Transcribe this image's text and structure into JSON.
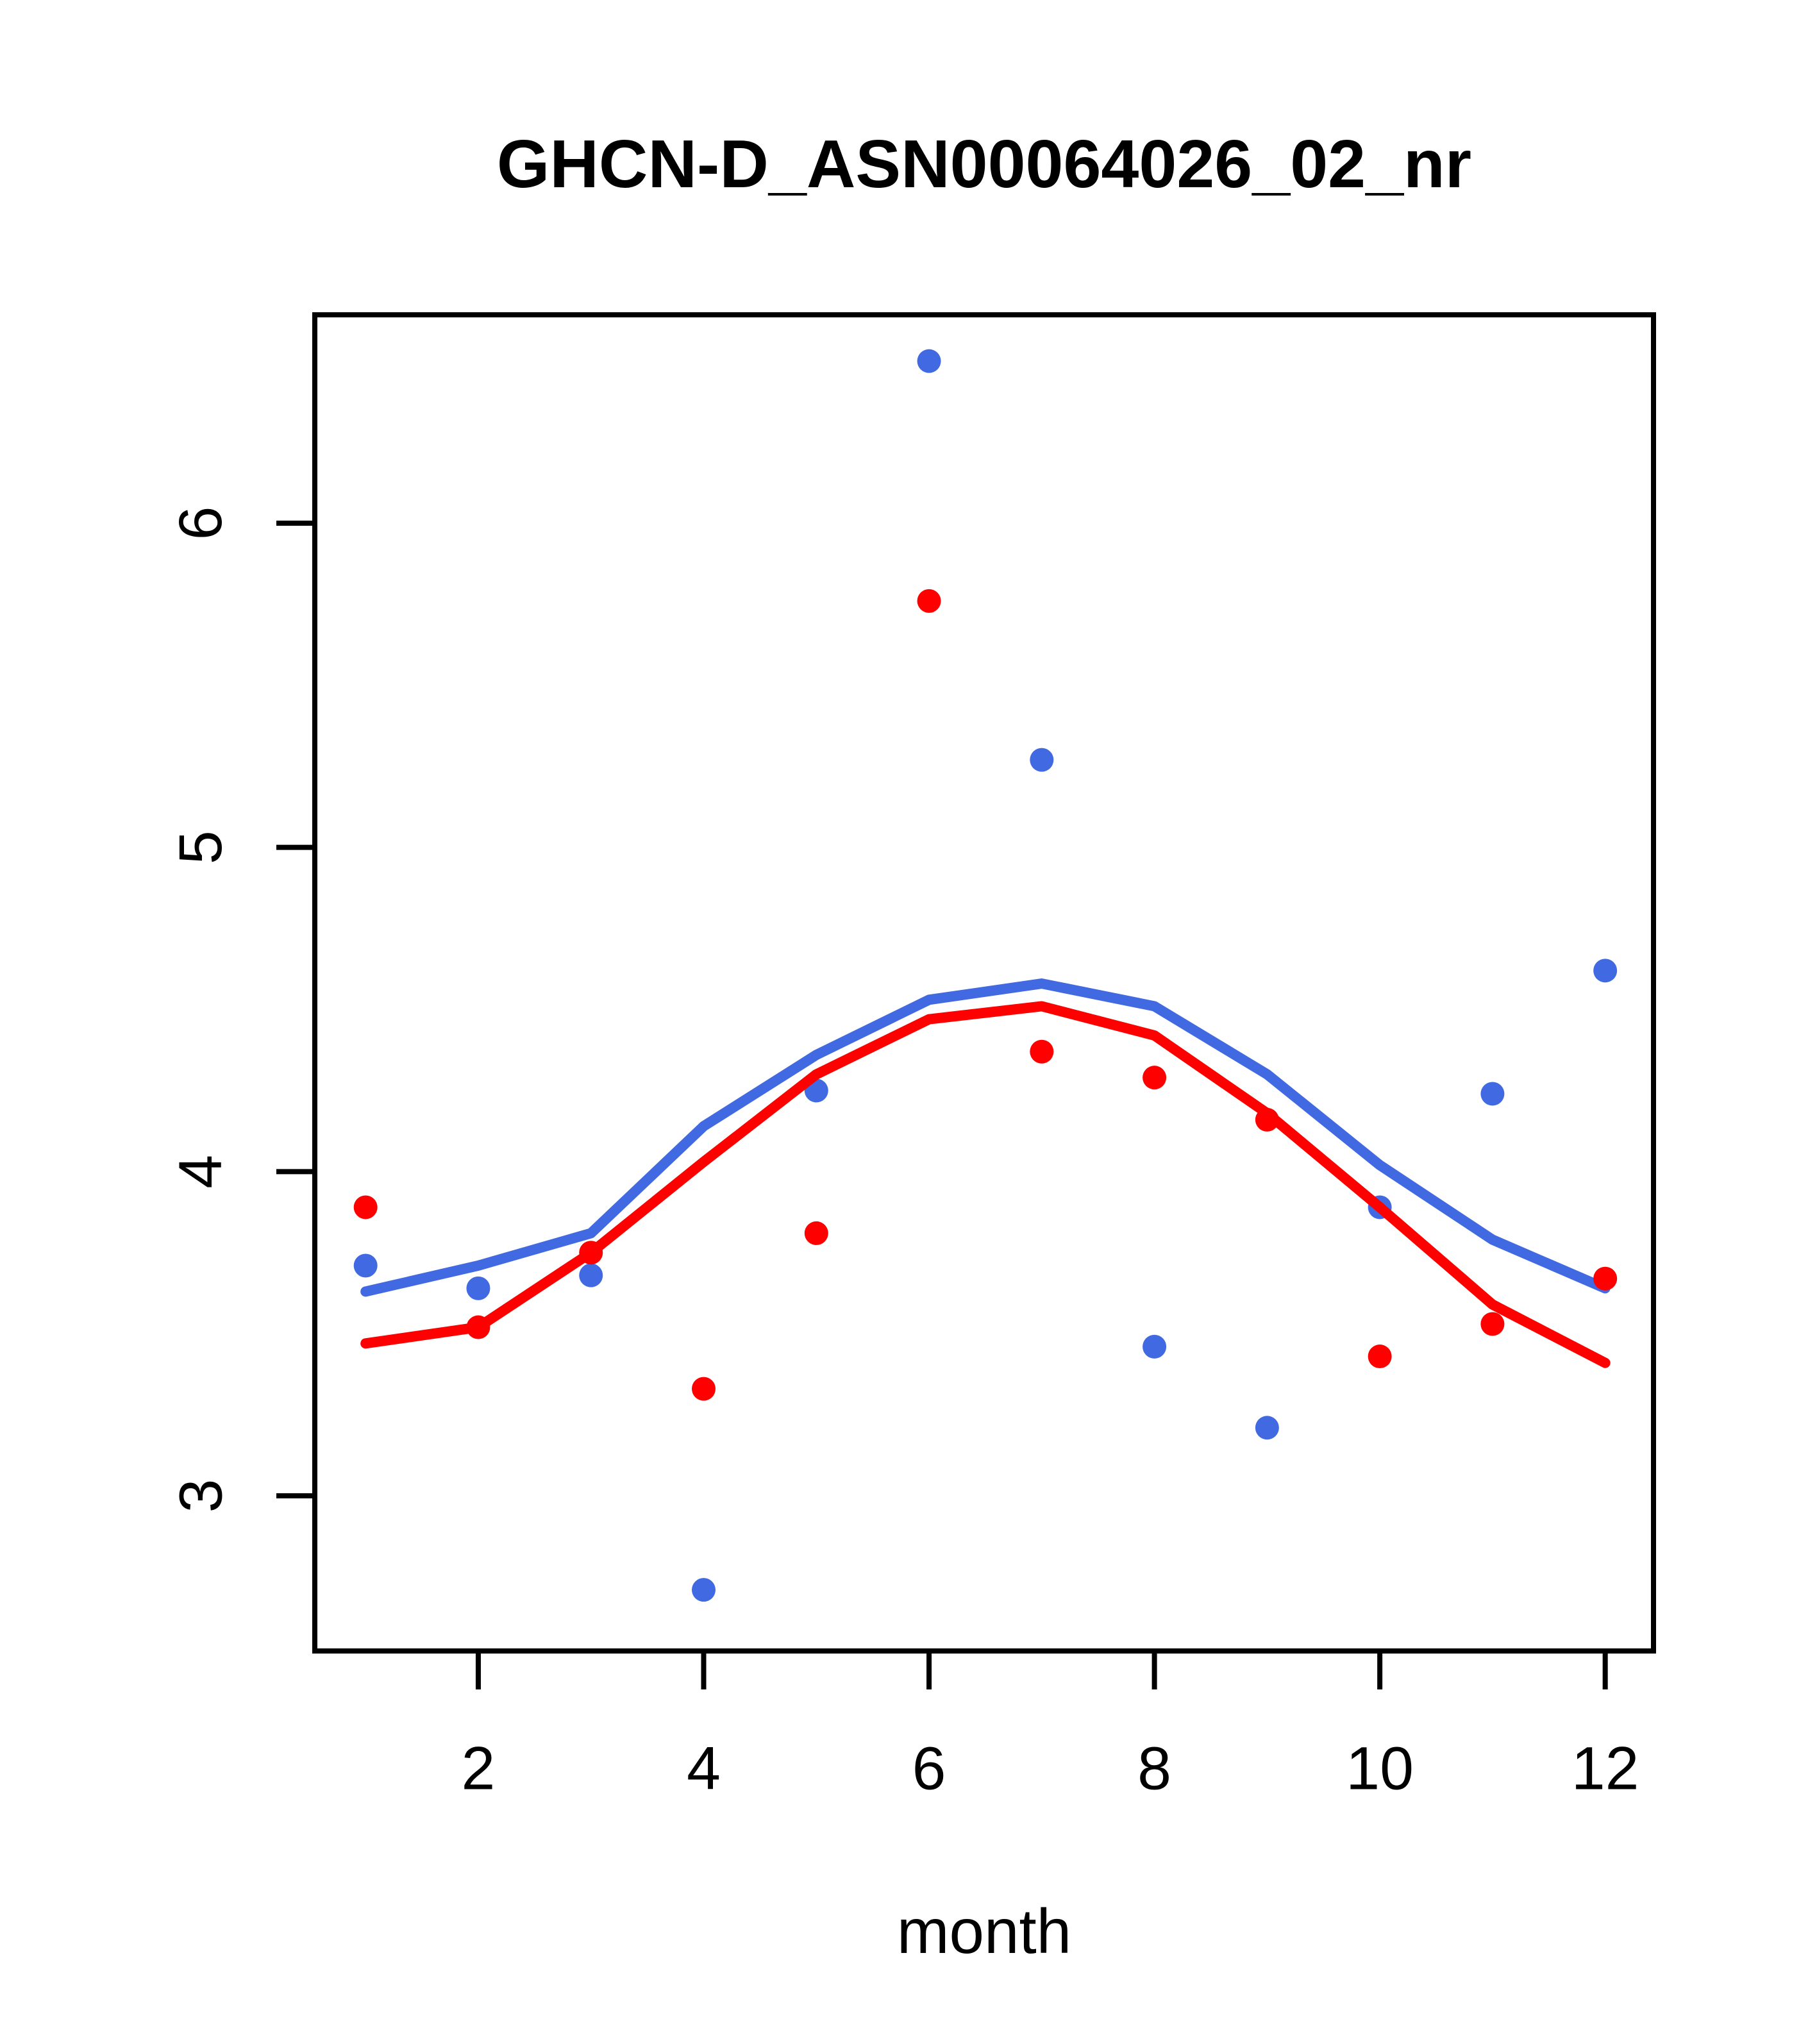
{
  "chart_data": {
    "type": "scatter",
    "title": "GHCN-D_ASN00064026_02_nr",
    "xlabel": "month",
    "ylabel": "",
    "x": [
      1,
      2,
      3,
      4,
      5,
      6,
      7,
      8,
      9,
      10,
      11,
      12
    ],
    "xticks": [
      2,
      4,
      6,
      8,
      10,
      12
    ],
    "yticks": [
      3,
      4,
      5,
      6
    ],
    "xlim": [
      0.56,
      12.44
    ],
    "ylim": [
      2.55,
      6.66
    ],
    "grid": false,
    "legend": "none",
    "colors": {
      "blue": "#4169E1",
      "red": "#FF0000",
      "axis": "#000000",
      "background": "#FFFFFF"
    },
    "series": [
      {
        "name": "blue-points",
        "kind": "points",
        "color": "#4169E1",
        "values": [
          3.71,
          3.64,
          3.68,
          2.71,
          4.25,
          6.5,
          5.27,
          3.46,
          3.21,
          3.89,
          4.24,
          4.62
        ]
      },
      {
        "name": "blue-line",
        "kind": "line",
        "color": "#4169E1",
        "values": [
          3.63,
          3.71,
          3.81,
          4.14,
          4.36,
          4.53,
          4.58,
          4.51,
          4.3,
          4.02,
          3.79,
          3.64
        ]
      },
      {
        "name": "red-line",
        "kind": "line",
        "color": "#FF0000",
        "values": [
          3.47,
          3.52,
          3.75,
          4.03,
          4.3,
          4.47,
          4.51,
          4.42,
          4.18,
          3.89,
          3.59,
          3.41
        ]
      },
      {
        "name": "red-points",
        "kind": "points",
        "color": "#FF0000",
        "values": [
          3.89,
          3.52,
          3.75,
          3.33,
          3.81,
          5.76,
          4.37,
          4.29,
          4.16,
          3.43,
          3.53,
          3.67
        ]
      }
    ]
  }
}
